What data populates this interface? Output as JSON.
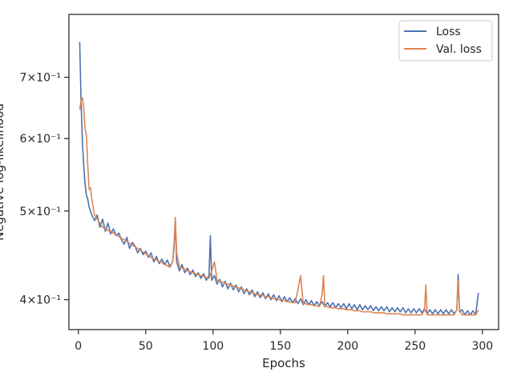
{
  "chart_data": {
    "type": "line",
    "xlabel": "Epochs",
    "ylabel": "Negative log-likelihood",
    "x_ticks": [
      "0",
      "50",
      "100",
      "150",
      "200",
      "250",
      "300"
    ],
    "y_ticks": [
      {
        "value": 0.4,
        "label": "4×10⁻¹"
      },
      {
        "value": 0.5,
        "label": "5×10⁻¹"
      },
      {
        "value": 0.6,
        "label": "6×10⁻¹"
      },
      {
        "value": 0.7,
        "label": "7×10⁻¹"
      }
    ],
    "xlim": [
      -7,
      312
    ],
    "ylim": [
      0.371,
      0.82
    ],
    "yscale": "log",
    "grid": false,
    "legend_position": "top-right",
    "series": [
      {
        "name": "Loss",
        "color": "#4c72b0",
        "points": [
          [
            1,
            0.765
          ],
          [
            2,
            0.66
          ],
          [
            3,
            0.595
          ],
          [
            4,
            0.56
          ],
          [
            5,
            0.535
          ],
          [
            6,
            0.52
          ],
          [
            7,
            0.515
          ],
          [
            8,
            0.505
          ],
          [
            9,
            0.5
          ],
          [
            10,
            0.495
          ],
          [
            12,
            0.488
          ],
          [
            14,
            0.495
          ],
          [
            16,
            0.48
          ],
          [
            18,
            0.49
          ],
          [
            20,
            0.475
          ],
          [
            22,
            0.485
          ],
          [
            24,
            0.472
          ],
          [
            26,
            0.478
          ],
          [
            28,
            0.47
          ],
          [
            30,
            0.473
          ],
          [
            32,
            0.465
          ],
          [
            34,
            0.46
          ],
          [
            36,
            0.468
          ],
          [
            38,
            0.455
          ],
          [
            40,
            0.462
          ],
          [
            42,
            0.458
          ],
          [
            44,
            0.45
          ],
          [
            46,
            0.455
          ],
          [
            48,
            0.448
          ],
          [
            50,
            0.452
          ],
          [
            52,
            0.445
          ],
          [
            54,
            0.45
          ],
          [
            56,
            0.44
          ],
          [
            58,
            0.446
          ],
          [
            60,
            0.438
          ],
          [
            62,
            0.443
          ],
          [
            64,
            0.437
          ],
          [
            66,
            0.442
          ],
          [
            68,
            0.435
          ],
          [
            70,
            0.44
          ],
          [
            71,
            0.455
          ],
          [
            72,
            0.487
          ],
          [
            73,
            0.44
          ],
          [
            75,
            0.43
          ],
          [
            77,
            0.437
          ],
          [
            79,
            0.428
          ],
          [
            81,
            0.433
          ],
          [
            83,
            0.426
          ],
          [
            85,
            0.431
          ],
          [
            87,
            0.424
          ],
          [
            89,
            0.428
          ],
          [
            91,
            0.422
          ],
          [
            93,
            0.427
          ],
          [
            95,
            0.42
          ],
          [
            97,
            0.425
          ],
          [
            98,
            0.47
          ],
          [
            99,
            0.42
          ],
          [
            101,
            0.425
          ],
          [
            103,
            0.416
          ],
          [
            105,
            0.421
          ],
          [
            107,
            0.413
          ],
          [
            109,
            0.419
          ],
          [
            111,
            0.411
          ],
          [
            113,
            0.417
          ],
          [
            115,
            0.41
          ],
          [
            117,
            0.415
          ],
          [
            119,
            0.408
          ],
          [
            121,
            0.413
          ],
          [
            123,
            0.406
          ],
          [
            125,
            0.411
          ],
          [
            127,
            0.405
          ],
          [
            129,
            0.41
          ],
          [
            131,
            0.403
          ],
          [
            133,
            0.408
          ],
          [
            135,
            0.402
          ],
          [
            137,
            0.407
          ],
          [
            139,
            0.401
          ],
          [
            141,
            0.406
          ],
          [
            143,
            0.4
          ],
          [
            145,
            0.405
          ],
          [
            147,
            0.399
          ],
          [
            149,
            0.404
          ],
          [
            151,
            0.398
          ],
          [
            153,
            0.403
          ],
          [
            155,
            0.398
          ],
          [
            157,
            0.402
          ],
          [
            159,
            0.397
          ],
          [
            161,
            0.401
          ],
          [
            163,
            0.396
          ],
          [
            165,
            0.401
          ],
          [
            167,
            0.395
          ],
          [
            169,
            0.4
          ],
          [
            171,
            0.395
          ],
          [
            173,
            0.399
          ],
          [
            175,
            0.394
          ],
          [
            177,
            0.398
          ],
          [
            179,
            0.394
          ],
          [
            181,
            0.398
          ],
          [
            183,
            0.393
          ],
          [
            185,
            0.397
          ],
          [
            187,
            0.393
          ],
          [
            189,
            0.397
          ],
          [
            191,
            0.392
          ],
          [
            193,
            0.396
          ],
          [
            195,
            0.392
          ],
          [
            197,
            0.396
          ],
          [
            199,
            0.391
          ],
          [
            201,
            0.396
          ],
          [
            203,
            0.391
          ],
          [
            205,
            0.395
          ],
          [
            207,
            0.39
          ],
          [
            209,
            0.395
          ],
          [
            211,
            0.39
          ],
          [
            213,
            0.394
          ],
          [
            215,
            0.39
          ],
          [
            217,
            0.394
          ],
          [
            219,
            0.389
          ],
          [
            221,
            0.393
          ],
          [
            223,
            0.389
          ],
          [
            225,
            0.393
          ],
          [
            227,
            0.389
          ],
          [
            229,
            0.393
          ],
          [
            231,
            0.388
          ],
          [
            233,
            0.392
          ],
          [
            235,
            0.388
          ],
          [
            237,
            0.392
          ],
          [
            239,
            0.388
          ],
          [
            241,
            0.392
          ],
          [
            243,
            0.387
          ],
          [
            245,
            0.391
          ],
          [
            247,
            0.387
          ],
          [
            249,
            0.391
          ],
          [
            251,
            0.387
          ],
          [
            253,
            0.391
          ],
          [
            255,
            0.387
          ],
          [
            257,
            0.391
          ],
          [
            259,
            0.386
          ],
          [
            261,
            0.39
          ],
          [
            263,
            0.386
          ],
          [
            265,
            0.39
          ],
          [
            267,
            0.386
          ],
          [
            269,
            0.39
          ],
          [
            271,
            0.386
          ],
          [
            273,
            0.39
          ],
          [
            275,
            0.386
          ],
          [
            277,
            0.39
          ],
          [
            279,
            0.386
          ],
          [
            281,
            0.39
          ],
          [
            282,
            0.426
          ],
          [
            283,
            0.388
          ],
          [
            285,
            0.39
          ],
          [
            287,
            0.385
          ],
          [
            289,
            0.389
          ],
          [
            291,
            0.385
          ],
          [
            293,
            0.389
          ],
          [
            295,
            0.385
          ],
          [
            297,
            0.407
          ]
        ]
      },
      {
        "name": "Val. loss",
        "color": "#dd8452",
        "points": [
          [
            1,
            0.645
          ],
          [
            2,
            0.66
          ],
          [
            3,
            0.665
          ],
          [
            4,
            0.648
          ],
          [
            5,
            0.615
          ],
          [
            6,
            0.605
          ],
          [
            7,
            0.56
          ],
          [
            8,
            0.528
          ],
          [
            9,
            0.53
          ],
          [
            10,
            0.515
          ],
          [
            12,
            0.495
          ],
          [
            14,
            0.49
          ],
          [
            16,
            0.485
          ],
          [
            18,
            0.48
          ],
          [
            20,
            0.478
          ],
          [
            22,
            0.476
          ],
          [
            24,
            0.475
          ],
          [
            26,
            0.473
          ],
          [
            28,
            0.471
          ],
          [
            30,
            0.469
          ],
          [
            32,
            0.467
          ],
          [
            34,
            0.465
          ],
          [
            36,
            0.463
          ],
          [
            38,
            0.461
          ],
          [
            40,
            0.459
          ],
          [
            42,
            0.457
          ],
          [
            44,
            0.455
          ],
          [
            46,
            0.453
          ],
          [
            48,
            0.451
          ],
          [
            50,
            0.449
          ],
          [
            52,
            0.447
          ],
          [
            54,
            0.445
          ],
          [
            56,
            0.443
          ],
          [
            58,
            0.442
          ],
          [
            60,
            0.44
          ],
          [
            62,
            0.439
          ],
          [
            64,
            0.437
          ],
          [
            66,
            0.436
          ],
          [
            68,
            0.434
          ],
          [
            70,
            0.44
          ],
          [
            71,
            0.46
          ],
          [
            72,
            0.492
          ],
          [
            73,
            0.45
          ],
          [
            75,
            0.435
          ],
          [
            77,
            0.433
          ],
          [
            79,
            0.432
          ],
          [
            81,
            0.43
          ],
          [
            83,
            0.429
          ],
          [
            85,
            0.428
          ],
          [
            87,
            0.427
          ],
          [
            89,
            0.426
          ],
          [
            91,
            0.425
          ],
          [
            93,
            0.424
          ],
          [
            95,
            0.423
          ],
          [
            97,
            0.422
          ],
          [
            99,
            0.43
          ],
          [
            101,
            0.44
          ],
          [
            103,
            0.42
          ],
          [
            105,
            0.419
          ],
          [
            107,
            0.418
          ],
          [
            109,
            0.417
          ],
          [
            111,
            0.416
          ],
          [
            113,
            0.415
          ],
          [
            115,
            0.414
          ],
          [
            117,
            0.413
          ],
          [
            119,
            0.412
          ],
          [
            121,
            0.411
          ],
          [
            123,
            0.41
          ],
          [
            125,
            0.409
          ],
          [
            127,
            0.408
          ],
          [
            129,
            0.407
          ],
          [
            131,
            0.406
          ],
          [
            133,
            0.405
          ],
          [
            135,
            0.405
          ],
          [
            137,
            0.404
          ],
          [
            139,
            0.403
          ],
          [
            141,
            0.403
          ],
          [
            143,
            0.402
          ],
          [
            145,
            0.401
          ],
          [
            147,
            0.401
          ],
          [
            149,
            0.4
          ],
          [
            151,
            0.4
          ],
          [
            153,
            0.399
          ],
          [
            155,
            0.398
          ],
          [
            157,
            0.398
          ],
          [
            159,
            0.397
          ],
          [
            161,
            0.397
          ],
          [
            163,
            0.41
          ],
          [
            165,
            0.425
          ],
          [
            167,
            0.396
          ],
          [
            169,
            0.396
          ],
          [
            171,
            0.395
          ],
          [
            173,
            0.395
          ],
          [
            175,
            0.394
          ],
          [
            177,
            0.394
          ],
          [
            179,
            0.393
          ],
          [
            181,
            0.406
          ],
          [
            182,
            0.425
          ],
          [
            183,
            0.393
          ],
          [
            185,
            0.393
          ],
          [
            187,
            0.392
          ],
          [
            189,
            0.392
          ],
          [
            191,
            0.392
          ],
          [
            193,
            0.391
          ],
          [
            195,
            0.391
          ],
          [
            197,
            0.391
          ],
          [
            199,
            0.39
          ],
          [
            201,
            0.39
          ],
          [
            203,
            0.39
          ],
          [
            205,
            0.389
          ],
          [
            207,
            0.389
          ],
          [
            209,
            0.389
          ],
          [
            211,
            0.388
          ],
          [
            213,
            0.388
          ],
          [
            215,
            0.388
          ],
          [
            217,
            0.388
          ],
          [
            219,
            0.387
          ],
          [
            221,
            0.387
          ],
          [
            223,
            0.387
          ],
          [
            225,
            0.387
          ],
          [
            227,
            0.387
          ],
          [
            229,
            0.386
          ],
          [
            231,
            0.386
          ],
          [
            233,
            0.386
          ],
          [
            235,
            0.386
          ],
          [
            237,
            0.386
          ],
          [
            239,
            0.386
          ],
          [
            241,
            0.385
          ],
          [
            243,
            0.385
          ],
          [
            245,
            0.385
          ],
          [
            247,
            0.385
          ],
          [
            249,
            0.385
          ],
          [
            251,
            0.385
          ],
          [
            253,
            0.385
          ],
          [
            255,
            0.385
          ],
          [
            257,
            0.39
          ],
          [
            258,
            0.415
          ],
          [
            259,
            0.385
          ],
          [
            261,
            0.385
          ],
          [
            263,
            0.385
          ],
          [
            265,
            0.385
          ],
          [
            267,
            0.385
          ],
          [
            269,
            0.385
          ],
          [
            271,
            0.385
          ],
          [
            273,
            0.385
          ],
          [
            275,
            0.385
          ],
          [
            277,
            0.385
          ],
          [
            279,
            0.385
          ],
          [
            281,
            0.39
          ],
          [
            282,
            0.42
          ],
          [
            283,
            0.39
          ],
          [
            285,
            0.385
          ],
          [
            287,
            0.385
          ],
          [
            289,
            0.385
          ],
          [
            291,
            0.385
          ],
          [
            293,
            0.385
          ],
          [
            295,
            0.385
          ],
          [
            297,
            0.39
          ]
        ]
      }
    ]
  }
}
